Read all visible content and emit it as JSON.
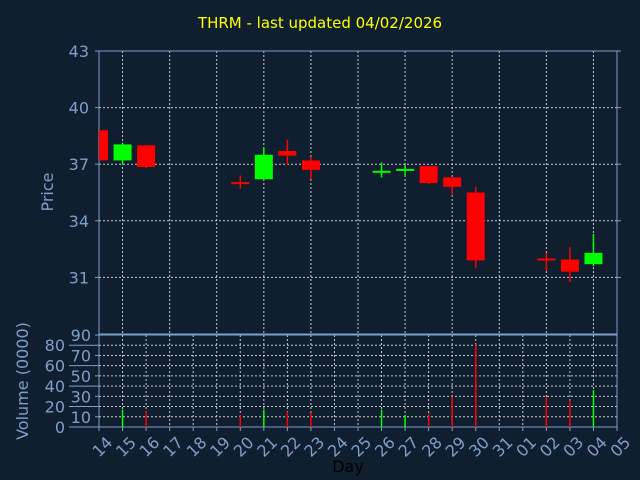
{
  "chart_data": {
    "type": "candlestick",
    "title": "THRM - last updated 04/02/2026",
    "xlabel": "Day",
    "ylabel": "Price",
    "volume_label": "Volume (0000)",
    "x_ticks": [
      "14",
      "15",
      "16",
      "17",
      "18",
      "19",
      "20",
      "21",
      "22",
      "23",
      "24",
      "25",
      "26",
      "27",
      "28",
      "29",
      "30",
      "31",
      "01",
      "02",
      "03",
      "04",
      "05"
    ],
    "y_ticks": [
      31,
      34,
      37,
      40,
      43
    ],
    "ylim": [
      28,
      43
    ],
    "volume_ticks": [
      0,
      10,
      20,
      30,
      40,
      50,
      60,
      70,
      80,
      90
    ],
    "volume_ylim": [
      0,
      90
    ],
    "grid": true,
    "colors": {
      "up": "#00ff00",
      "down": "#ff0000",
      "axis": "#7f9fc8",
      "title": "#ffff00",
      "background": "#0f1f30"
    },
    "candles": [
      {
        "day": "14",
        "open": 38.8,
        "high": 38.8,
        "low": 37.2,
        "close": 37.2,
        "volume": 0
      },
      {
        "day": "15",
        "open": 37.2,
        "high": 38.15,
        "low": 36.95,
        "close": 38.05,
        "volume": 17
      },
      {
        "day": "16",
        "open": 38.0,
        "high": 38.0,
        "low": 36.8,
        "close": 36.85,
        "volume": 16
      },
      {
        "day": "20",
        "open": 36.05,
        "high": 36.4,
        "low": 35.7,
        "close": 35.95,
        "volume": 12
      },
      {
        "day": "21",
        "open": 36.2,
        "high": 37.9,
        "low": 36.2,
        "close": 37.5,
        "volume": 17
      },
      {
        "day": "22",
        "open": 37.7,
        "high": 38.3,
        "low": 36.95,
        "close": 37.45,
        "volume": 15
      },
      {
        "day": "23",
        "open": 37.2,
        "high": 37.4,
        "low": 36.2,
        "close": 36.7,
        "volume": 14
      },
      {
        "day": "26",
        "open": 36.6,
        "high": 37.1,
        "low": 36.3,
        "close": 36.65,
        "volume": 17
      },
      {
        "day": "27",
        "open": 36.7,
        "high": 36.95,
        "low": 36.4,
        "close": 36.75,
        "volume": 12
      },
      {
        "day": "28",
        "open": 36.9,
        "high": 36.9,
        "low": 35.95,
        "close": 36.0,
        "volume": 13
      },
      {
        "day": "29",
        "open": 36.3,
        "high": 36.3,
        "low": 35.4,
        "close": 35.8,
        "volume": 30
      },
      {
        "day": "30",
        "open": 35.5,
        "high": 35.8,
        "low": 31.5,
        "close": 31.9,
        "volume": 81
      },
      {
        "day": "02",
        "open": 32.0,
        "high": 32.3,
        "low": 31.35,
        "close": 31.95,
        "volume": 29
      },
      {
        "day": "03",
        "open": 31.95,
        "high": 32.6,
        "low": 30.75,
        "close": 31.3,
        "volume": 26
      },
      {
        "day": "04",
        "open": 31.7,
        "high": 33.3,
        "low": 31.6,
        "close": 32.3,
        "volume": 36
      }
    ]
  }
}
